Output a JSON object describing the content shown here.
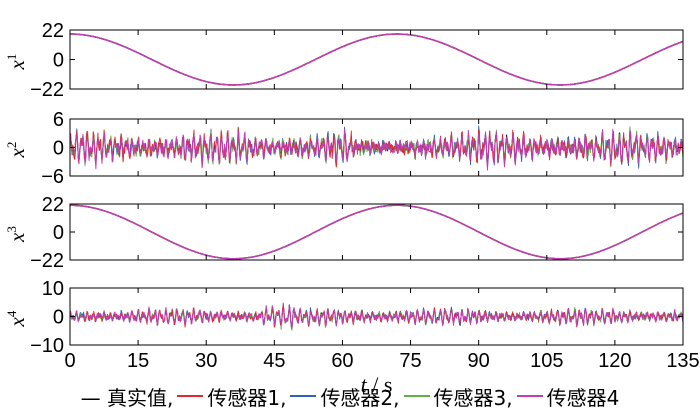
{
  "chart_data": {
    "type": "line",
    "xlabel": "t / s",
    "x_ticks": [
      "0",
      "15",
      "30",
      "45",
      "60",
      "75",
      "90",
      "105",
      "120",
      "135"
    ],
    "xlim": [
      0,
      135
    ],
    "legend_position": "bottom",
    "series_styles": [
      {
        "name": "真实值",
        "color": "#000000"
      },
      {
        "name": "传感器1",
        "color": "#e3272c"
      },
      {
        "name": "传感器2",
        "color": "#2b64b8"
      },
      {
        "name": "传感器3",
        "color": "#58b33f"
      },
      {
        "name": "传感器4",
        "color": "#c13cba"
      }
    ],
    "legend": [
      "— 真实值,",
      "传感器1,",
      "传感器2,",
      "传感器3,",
      "传感器4"
    ],
    "panels": [
      {
        "ylabel": "x",
        "ylabel_sup": "1",
        "ylim": [
          -22,
          22
        ],
        "y_ticks": [
          "22",
          "0",
          "−22"
        ],
        "kind": "sinusoid",
        "description_values": {
          "amplitude": 19,
          "period_s": 72,
          "peak_time_s": 72,
          "first_trough_s": 36
        },
        "series_points": [
          {
            "t": 0,
            "y": 19
          },
          {
            "t": 18,
            "y": 0
          },
          {
            "t": 36,
            "y": -19
          },
          {
            "t": 54,
            "y": 0
          },
          {
            "t": 72,
            "y": 19
          },
          {
            "t": 90,
            "y": 0
          },
          {
            "t": 108,
            "y": -19
          },
          {
            "t": 126,
            "y": 0
          },
          {
            "t": 135,
            "y": 13.4
          }
        ]
      },
      {
        "ylabel": "x",
        "ylabel_sup": "2",
        "ylim": [
          -6,
          6
        ],
        "y_ticks": [
          "6",
          "0",
          "−6"
        ],
        "kind": "oscillation",
        "description_values": {
          "typical_amplitude": 3,
          "max_abs": 5.5
        }
      },
      {
        "ylabel": "x",
        "ylabel_sup": "3",
        "ylim": [
          -22,
          22
        ],
        "y_ticks": [
          "22",
          "0",
          "−22"
        ],
        "kind": "sinusoid",
        "description_values": {
          "amplitude": 21,
          "period_s": 72,
          "peak_time_s": 72,
          "first_trough_s": 36
        },
        "series_points": [
          {
            "t": 0,
            "y": 21
          },
          {
            "t": 18,
            "y": 0
          },
          {
            "t": 36,
            "y": -21
          },
          {
            "t": 54,
            "y": 0
          },
          {
            "t": 72,
            "y": 21
          },
          {
            "t": 90,
            "y": 0
          },
          {
            "t": 108,
            "y": -21
          },
          {
            "t": 126,
            "y": 0
          },
          {
            "t": 135,
            "y": 14.8
          }
        ]
      },
      {
        "ylabel": "x",
        "ylabel_sup": "4",
        "ylim": [
          -10,
          10
        ],
        "y_ticks": [
          "10",
          "0",
          "−10"
        ],
        "kind": "oscillation",
        "description_values": {
          "typical_amplitude": 2.5,
          "max_abs": 6.5
        }
      }
    ]
  }
}
